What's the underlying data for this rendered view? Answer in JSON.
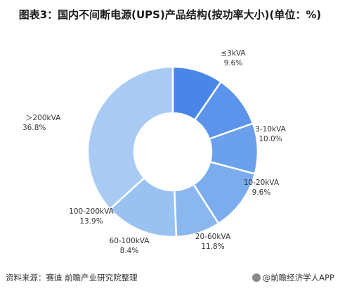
{
  "title": "图表3：国内不间断电源(UPS)产品结构(按功率大小)(单位：%)",
  "chart_data": {
    "type": "pie",
    "donut": true,
    "title": "图表3：国内不间断电源(UPS)产品结构(按功率大小)(单位：%)",
    "unit": "%",
    "slices": [
      {
        "label": "≤3kVA",
        "value": 9.6,
        "value_label": "9.6%",
        "color": "#4a86e8"
      },
      {
        "label": "3-10kVA",
        "value": 10.0,
        "value_label": "10.0%",
        "color": "#5b94ea"
      },
      {
        "label": "10-20kVA",
        "value": 9.6,
        "value_label": "9.6%",
        "color": "#6aa0ec"
      },
      {
        "label": "20-60kVA",
        "value": 11.8,
        "value_label": "11.8%",
        "color": "#7baced"
      },
      {
        "label": "60-100kVA",
        "value": 8.4,
        "value_label": "8.4%",
        "color": "#8bb7ef"
      },
      {
        "label": "100-200kVA",
        "value": 13.9,
        "value_label": "13.9%",
        "color": "#9ac2f1"
      },
      {
        "label": "＞200kVA",
        "value": 36.8,
        "value_label": "36.8%",
        "color": "#a9cbf3"
      }
    ]
  },
  "footer": {
    "source": "资料来源：赛迪 前瞻产业研究院整理",
    "brand": "@前瞻经济学人APP"
  }
}
